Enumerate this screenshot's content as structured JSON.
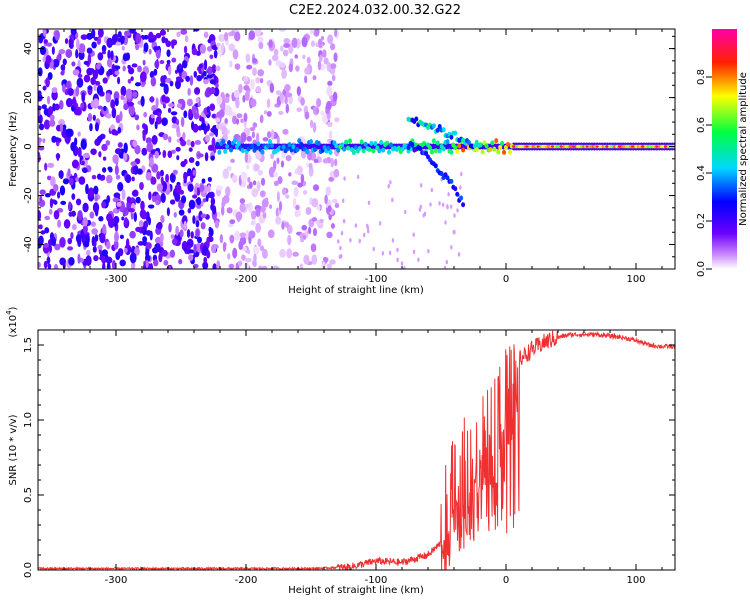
{
  "title": "C2E2.2024.032.00.32.G22",
  "chart_data": [
    {
      "type": "heatmap",
      "xlabel": "Height of straight line (km)",
      "ylabel": "Frequency (Hz)",
      "xlim": [
        -360,
        130
      ],
      "ylim": [
        -50,
        48
      ],
      "x_ticks": [
        -300,
        -200,
        -100,
        0,
        100
      ],
      "x_tick_labels": [
        "-300",
        "-200",
        "-100",
        "0",
        "100"
      ],
      "y_ticks": [
        -40,
        -20,
        0,
        20,
        40
      ],
      "y_tick_labels": [
        "-40",
        "-20",
        "0",
        "20",
        "40"
      ],
      "colorbar": {
        "label": "Normalized spectral amplitude",
        "range": [
          0,
          1
        ],
        "ticks": [
          0.0,
          0.2,
          0.4,
          0.6,
          0.8
        ],
        "tick_labels": [
          "0.0",
          "0.2",
          "0.4",
          "0.6",
          "0.8"
        ],
        "colormap": "rainbow (white-violet-blue-cyan-green-yellow-red-magenta)"
      },
      "features": [
        {
          "region": "noise",
          "x_range": [
            -360,
            -222
          ],
          "freq_range": [
            -50,
            48
          ],
          "amplitude": 0.15
        },
        {
          "region": "sparse noise",
          "x_range": [
            -222,
            -130
          ],
          "freq_range": [
            -50,
            48
          ],
          "amplitude": 0.05
        },
        {
          "region": "carrier line",
          "x_range": [
            -222,
            130
          ],
          "freq": 0,
          "amplitude": 0.9
        },
        {
          "region": "upper branch",
          "x_range": [
            -75,
            -20
          ],
          "freq_range": [
            0,
            12
          ],
          "amplitude": 0.4
        },
        {
          "region": "lower branch",
          "x_range": [
            -75,
            -32
          ],
          "freq_range": [
            -24,
            0
          ],
          "amplitude": 0.25
        }
      ]
    },
    {
      "type": "line",
      "xlabel": "Height of straight line (km)",
      "ylabel": "SNR (10 * v/v)",
      "y_multiplier_label": "(x10",
      "y_multiplier_exp": "4",
      "y_multiplier_close": ")",
      "xlim": [
        -360,
        130
      ],
      "ylim": [
        0,
        1.6
      ],
      "x_ticks": [
        -300,
        -200,
        -100,
        0,
        100
      ],
      "x_tick_labels": [
        "-300",
        "-200",
        "-100",
        "0",
        "100"
      ],
      "y_ticks": [
        0.0,
        0.5,
        1.0,
        1.5
      ],
      "y_tick_labels": [
        "0.0",
        "0.5",
        "1.0",
        "1.5"
      ],
      "line_color": "#f03030",
      "series": [
        {
          "x": [
            -360,
            -300,
            -200,
            -150,
            -120,
            -100,
            -80,
            -60,
            -50,
            -45,
            -40,
            -35,
            -30,
            -25,
            -20,
            -15,
            -10,
            -5,
            0,
            5,
            10,
            20,
            30,
            40,
            50,
            60,
            70,
            80,
            90,
            100,
            110,
            120,
            130
          ],
          "values": [
            0.01,
            0.01,
            0.01,
            0.01,
            0.02,
            0.06,
            0.05,
            0.1,
            0.18,
            0.35,
            0.55,
            0.6,
            0.65,
            0.7,
            0.75,
            0.8,
            0.88,
            1.0,
            1.15,
            1.3,
            1.4,
            1.47,
            1.52,
            1.55,
            1.57,
            1.57,
            1.57,
            1.56,
            1.55,
            1.53,
            1.5,
            1.49,
            1.49
          ]
        }
      ]
    }
  ]
}
